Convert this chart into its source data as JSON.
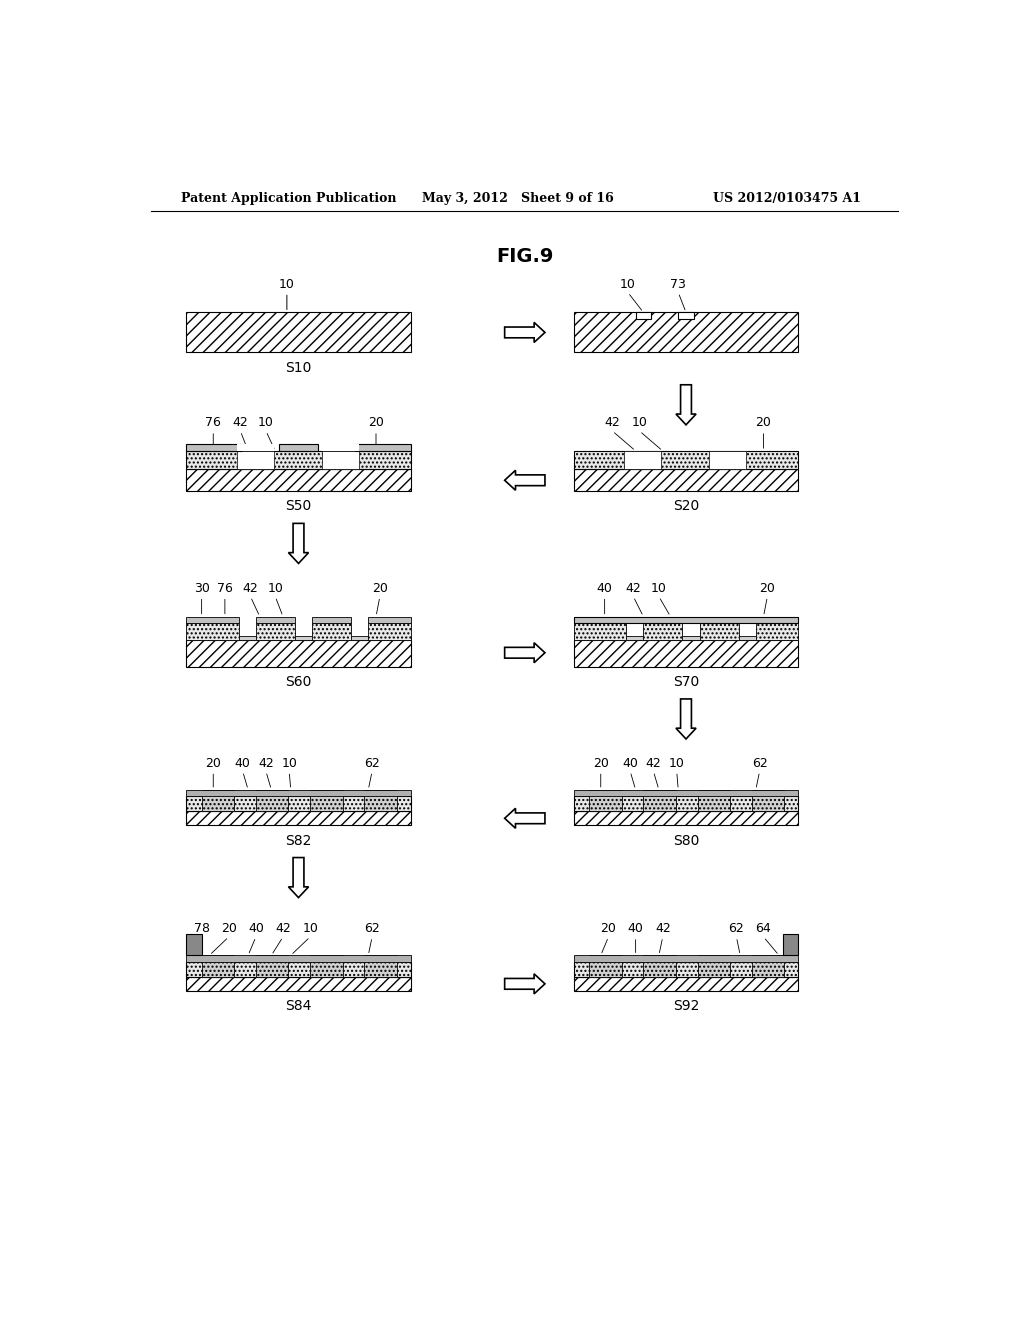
{
  "title": "FIG.9",
  "header_left": "Patent Application Publication",
  "header_mid": "May 3, 2012   Sheet 9 of 16",
  "header_right": "US 2012/0103475 A1",
  "bg_color": "#ffffff"
}
